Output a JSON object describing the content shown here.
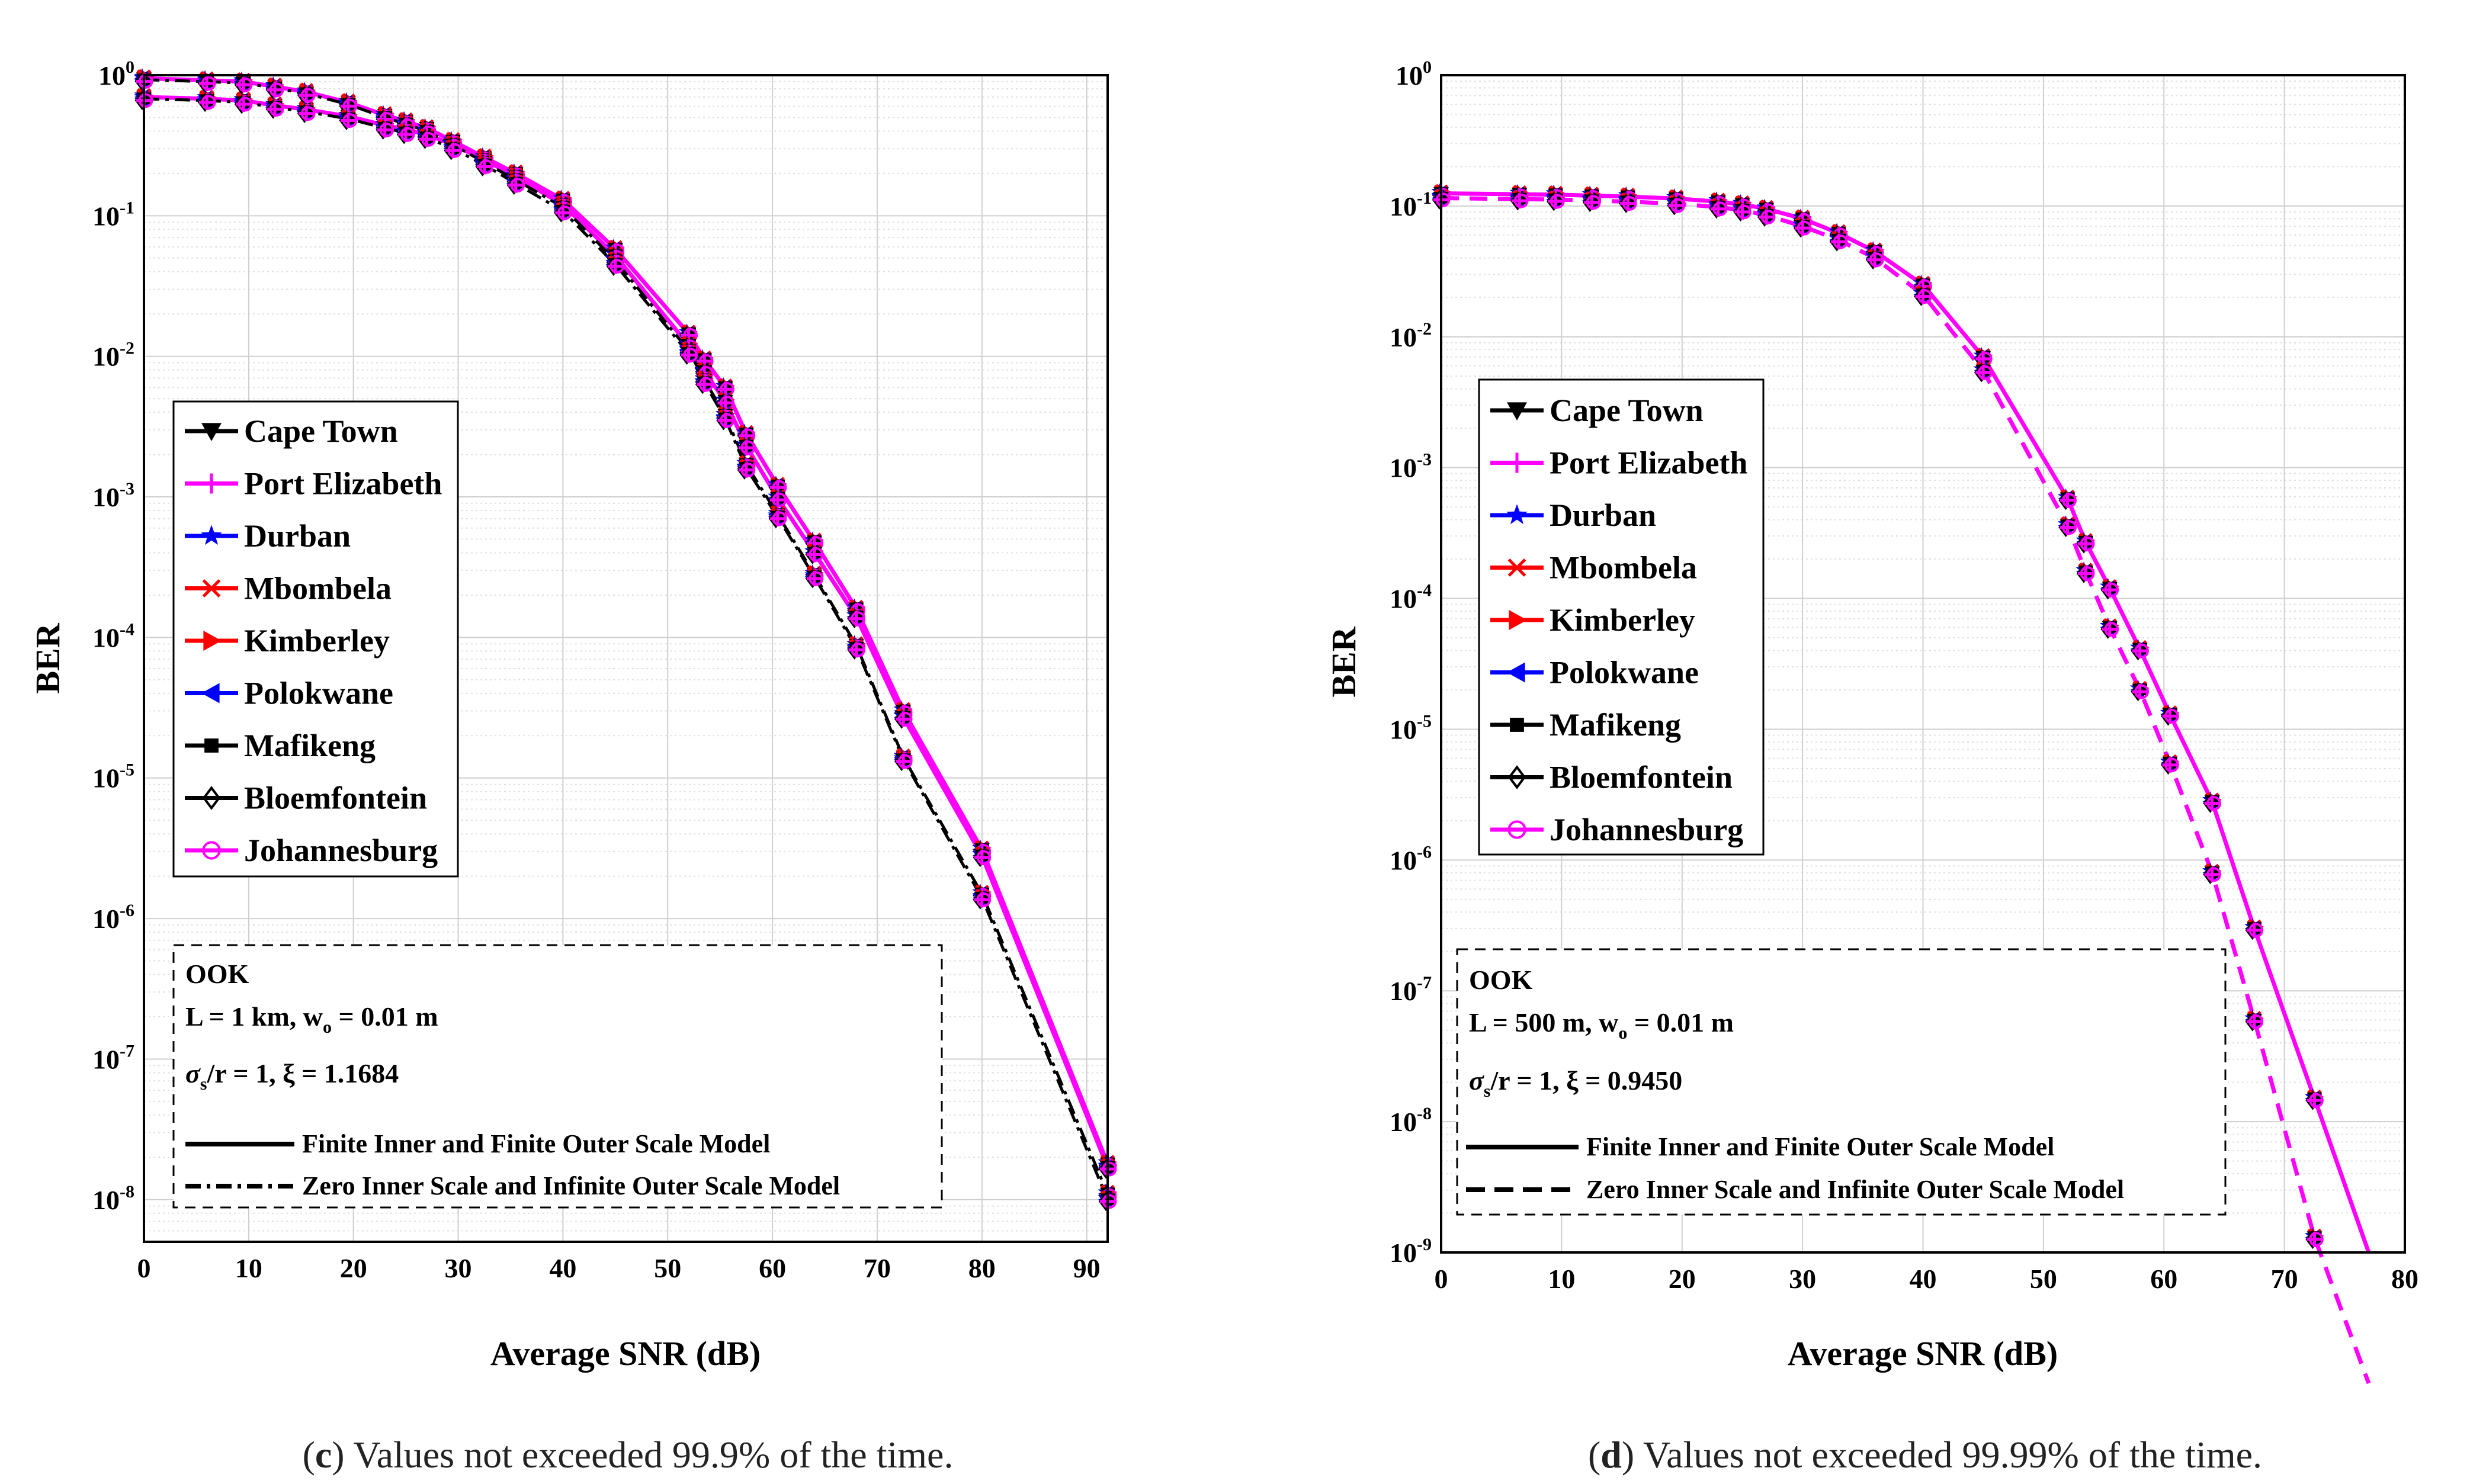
{
  "chart_data": [
    {
      "type": "line",
      "panel": "c",
      "caption_letter": "c",
      "caption_text": " Values not exceeded 99.9% of the time.",
      "xlabel": "Average SNR (dB)",
      "ylabel": "BER",
      "xlim": [
        0,
        92
      ],
      "ylim_exp": [
        -8.3,
        0
      ],
      "y_scale": "log",
      "xticks": [
        0,
        10,
        20,
        30,
        40,
        50,
        60,
        70,
        80,
        90
      ],
      "yticks_exp": [
        0,
        -1,
        -2,
        -3,
        -4,
        -5,
        -6,
        -7,
        -8
      ],
      "grid": true,
      "legend_placement": "left",
      "legend": [
        "Cape Town",
        "Port Elizabeth",
        "Durban",
        "Mbombela",
        "Kimberley",
        "Polokwane",
        "Mafikeng",
        "Bloemfontein",
        "Johannesburg"
      ],
      "annotation": {
        "line1": "OOK",
        "line2": "L = 1 km, w",
        "line2_sub": "o",
        "line2_end": " = 0.01 m",
        "line3_sigma": "σ",
        "line3_sub": "s",
        "line3_rest": "/r = 1,  ξ = 1.1684",
        "solid_label": "Finite Inner and Finite Outer Scale Model",
        "dashed_label": "Zero Inner Scale and Infinite Outer Scale Model"
      },
      "x": [
        0,
        6,
        9.5,
        12.5,
        15.5,
        19.5,
        23,
        25,
        27,
        29.5,
        32.5,
        35.5,
        40,
        45,
        52,
        53.5,
        55.5,
        57.5,
        60.5,
        64,
        68,
        72.5,
        80,
        92
      ],
      "series": [
        {
          "name": "Finite model (upper curve)",
          "y": [
            0.95,
            0.92,
            0.9,
            0.83,
            0.76,
            0.64,
            0.52,
            0.47,
            0.42,
            0.34,
            0.26,
            0.2,
            0.13,
            0.058,
            0.0145,
            0.0095,
            0.006,
            0.0028,
            0.0012,
            0.00048,
            0.00016,
            3e-05,
            3.1e-06,
            1.8e-08
          ]
        },
        {
          "name": "Finite model (lower curve)",
          "y": [
            0.7,
            0.68,
            0.66,
            0.61,
            0.57,
            0.51,
            0.44,
            0.41,
            0.38,
            0.32,
            0.25,
            0.19,
            0.12,
            0.052,
            0.012,
            0.0078,
            0.0048,
            0.0023,
            0.00098,
            0.0004,
            0.00014,
            2.7e-05,
            2.8e-06,
            1.7e-08
          ]
        },
        {
          "name": "Zero inner scale model (upper curve)",
          "y": [
            0.93,
            0.9,
            0.88,
            0.81,
            0.74,
            0.62,
            0.5,
            0.45,
            0.4,
            0.32,
            0.24,
            0.18,
            0.115,
            0.048,
            0.011,
            0.0068,
            0.0038,
            0.0017,
            0.00075,
            0.00028,
            8.8e-05,
            1.4e-05,
            1.5e-06,
            1.1e-08
          ]
        },
        {
          "name": "Zero inner scale model (lower curve)",
          "y": [
            0.68,
            0.66,
            0.64,
            0.59,
            0.55,
            0.49,
            0.42,
            0.39,
            0.36,
            0.3,
            0.23,
            0.17,
            0.108,
            0.045,
            0.0105,
            0.0065,
            0.0036,
            0.0016,
            0.00072,
            0.00027,
            8.4e-05,
            1.35e-05,
            1.4e-06,
            1e-08
          ]
        }
      ]
    },
    {
      "type": "line",
      "panel": "d",
      "caption_letter": "d",
      "caption_text": " Values not exceeded 99.99% of the time.",
      "xlabel": "Average SNR (dB)",
      "ylabel": "BER",
      "xlim": [
        0,
        80
      ],
      "ylim_exp": [
        -9,
        0
      ],
      "y_scale": "log",
      "xticks": [
        0,
        10,
        20,
        30,
        40,
        50,
        60,
        70,
        80
      ],
      "yticks_exp": [
        0,
        -1,
        -2,
        -3,
        -4,
        -5,
        -6,
        -7,
        -8,
        -9
      ],
      "grid": true,
      "legend_placement": "left",
      "legend": [
        "Cape Town",
        "Port Elizabeth",
        "Durban",
        "Mbombela",
        "Kimberley",
        "Polokwane",
        "Mafikeng",
        "Bloemfontein",
        "Johannesburg"
      ],
      "annotation": {
        "line1": "OOK",
        "line2": "L = 500 m, w",
        "line2_sub": "o",
        "line2_end": " = 0.01 m",
        "line3_sigma": "σ",
        "line3_sub": "s",
        "line3_rest": "/r = 1, ξ = 0.9450",
        "solid_label": "Finite Inner and Finite Outer Scale Model",
        "dashed_label": "Zero Inner Scale and Infinite Outer Scale Model"
      },
      "x": [
        0,
        6.5,
        9.5,
        12.5,
        15.5,
        19.5,
        23,
        25,
        27,
        30,
        33,
        36,
        40,
        45,
        52,
        53.5,
        55.5,
        58,
        60.5,
        64,
        67.5,
        72.5,
        77
      ],
      "series": [
        {
          "name": "Finite model",
          "y": [
            0.125,
            0.123,
            0.122,
            0.12,
            0.118,
            0.114,
            0.108,
            0.103,
            0.095,
            0.08,
            0.062,
            0.045,
            0.025,
            0.007,
            0.00058,
            0.00027,
            0.00012,
            4.1e-05,
            1.3e-05,
            2.8e-06,
            3e-07,
            1.5e-08,
            1e-09
          ]
        },
        {
          "name": "Zero inner scale model",
          "y": [
            0.115,
            0.113,
            0.112,
            0.11,
            0.108,
            0.104,
            0.098,
            0.093,
            0.085,
            0.07,
            0.055,
            0.04,
            0.021,
            0.0055,
            0.00036,
            0.00016,
            6e-05,
            2e-05,
            5.5e-06,
            8e-07,
            6e-08,
            1.3e-09,
            1e-10
          ]
        }
      ]
    }
  ]
}
